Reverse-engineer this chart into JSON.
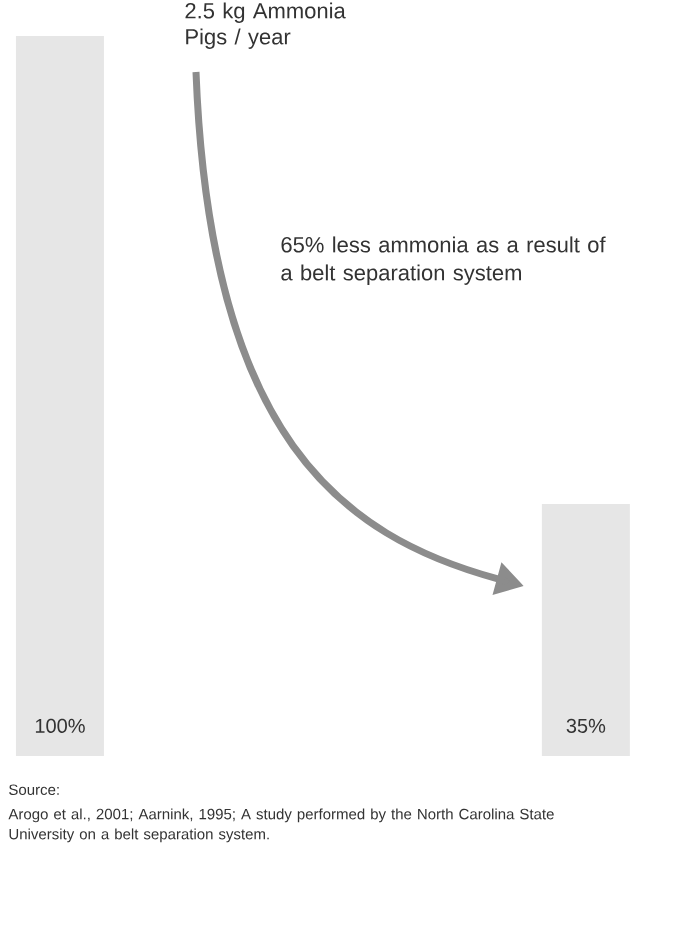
{
  "chart_data": {
    "type": "bar",
    "categories": [
      null,
      null
    ],
    "values": [
      100,
      35
    ],
    "value_labels": [
      "100%",
      "35%"
    ],
    "color": "#e6e6e6",
    "ylim": [
      0,
      100
    ],
    "annotations": [
      "2.5 kg Ammonia Pigs / year",
      "65% less ammonia as a result of a belt separation system",
      "Source:",
      "Arogo et al., 2001; Aarnink, 1995; A study performed by the North Carolina State University on a belt separation system."
    ]
  }
}
